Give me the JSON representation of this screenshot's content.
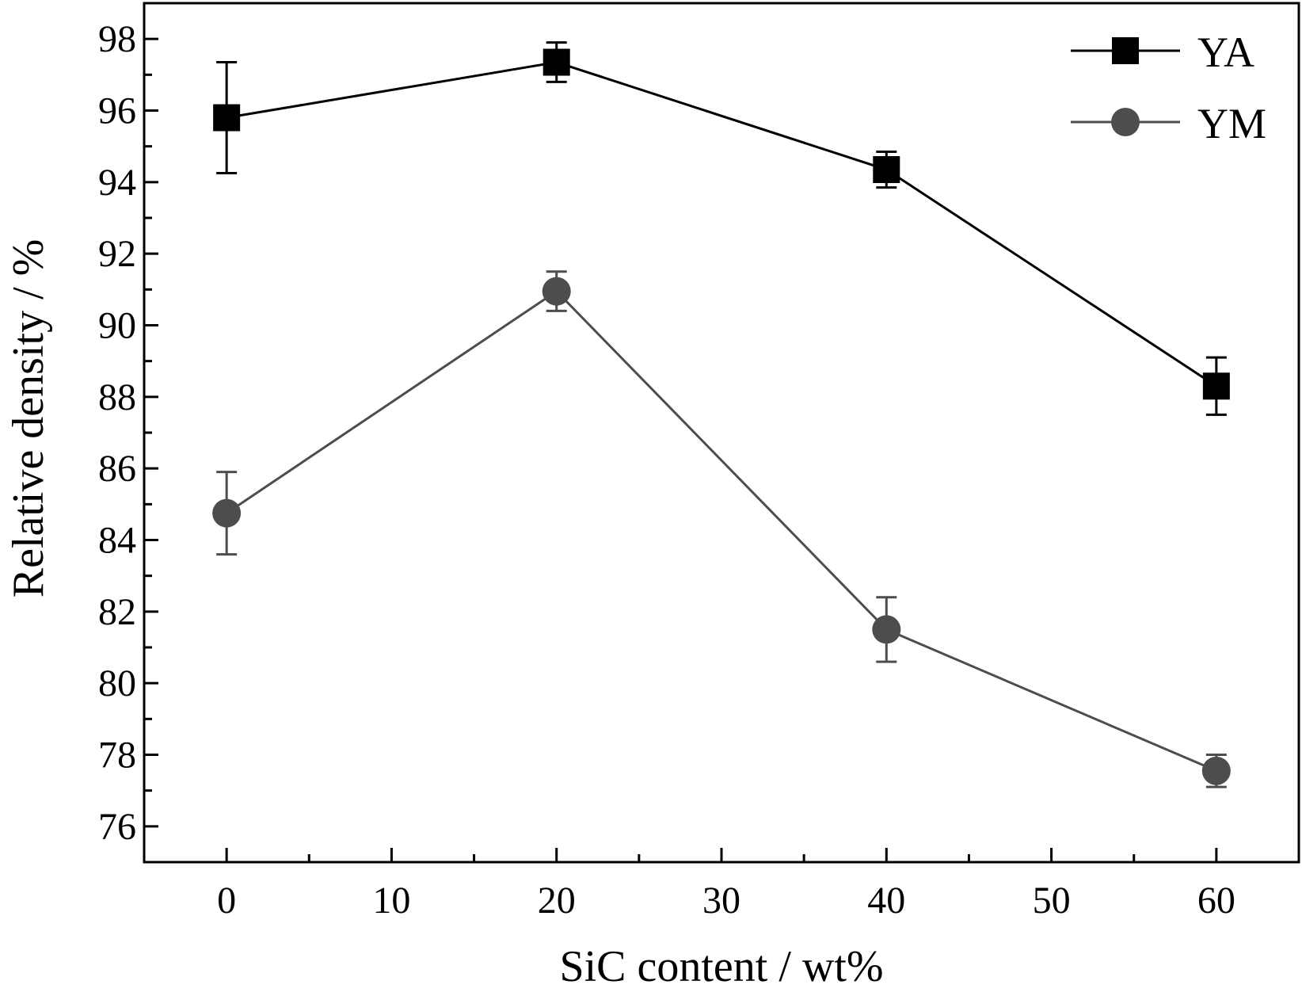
{
  "chart_data": {
    "type": "line",
    "xlabel": "SiC content / wt%",
    "ylabel": "Relative density / %",
    "xlim": [
      -5,
      65
    ],
    "ylim": [
      75,
      99
    ],
    "xticks": [
      "0",
      "10",
      "20",
      "30",
      "40",
      "50",
      "60"
    ],
    "yticks": [
      "76",
      "78",
      "80",
      "82",
      "84",
      "86",
      "88",
      "90",
      "92",
      "94",
      "96",
      "98"
    ],
    "legend_position": "top-right",
    "grid": false,
    "series": [
      {
        "name": "YA",
        "marker": "square",
        "color": "#000000",
        "x": [
          0,
          20,
          40,
          60
        ],
        "values": [
          95.8,
          97.35,
          94.35,
          88.3
        ],
        "error": [
          1.55,
          0.55,
          0.5,
          0.8
        ]
      },
      {
        "name": "YM",
        "marker": "circle",
        "color": "#4d4d4d",
        "x": [
          0,
          20,
          40,
          60
        ],
        "values": [
          84.75,
          90.95,
          81.5,
          77.55
        ],
        "error": [
          1.15,
          0.55,
          0.9,
          0.45
        ]
      }
    ]
  }
}
